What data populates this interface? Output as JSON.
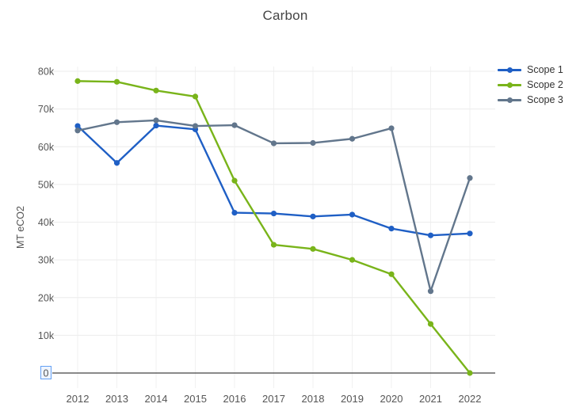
{
  "chart_data": {
    "type": "line",
    "title": "Carbon",
    "xlabel": "",
    "ylabel": "MT eCO2",
    "x": [
      2012,
      2013,
      2014,
      2015,
      2016,
      2017,
      2018,
      2019,
      2020,
      2021,
      2022
    ],
    "series": [
      {
        "name": "Scope 1",
        "color": "#1f5fc5",
        "values": [
          65500,
          55700,
          65600,
          64600,
          42500,
          42300,
          41500,
          42000,
          38300,
          36500,
          37000
        ]
      },
      {
        "name": "Scope 2",
        "color": "#79b41a",
        "values": [
          77400,
          77200,
          74900,
          73300,
          51000,
          34000,
          32900,
          30000,
          26200,
          13000,
          0
        ]
      },
      {
        "name": "Scope 3",
        "color": "#62768c",
        "values": [
          64300,
          66500,
          67000,
          65500,
          65700,
          60900,
          61000,
          62100,
          64900,
          21700,
          51700
        ]
      }
    ],
    "ylim": [
      0,
      80000
    ],
    "ytick_step": 10000,
    "ytick_labels": [
      "0",
      "10k",
      "20k",
      "30k",
      "40k",
      "50k",
      "60k",
      "70k",
      "80k"
    ],
    "highlighted_ytick": "0",
    "grid": true,
    "legend_position": "top-right"
  },
  "style": {
    "grid_color": "#ececec",
    "vgrid_color": "#f1f1f1",
    "axis_line_color": "#444444",
    "tick_label_color": "#555555",
    "highlight_color": "#63a0f4"
  }
}
